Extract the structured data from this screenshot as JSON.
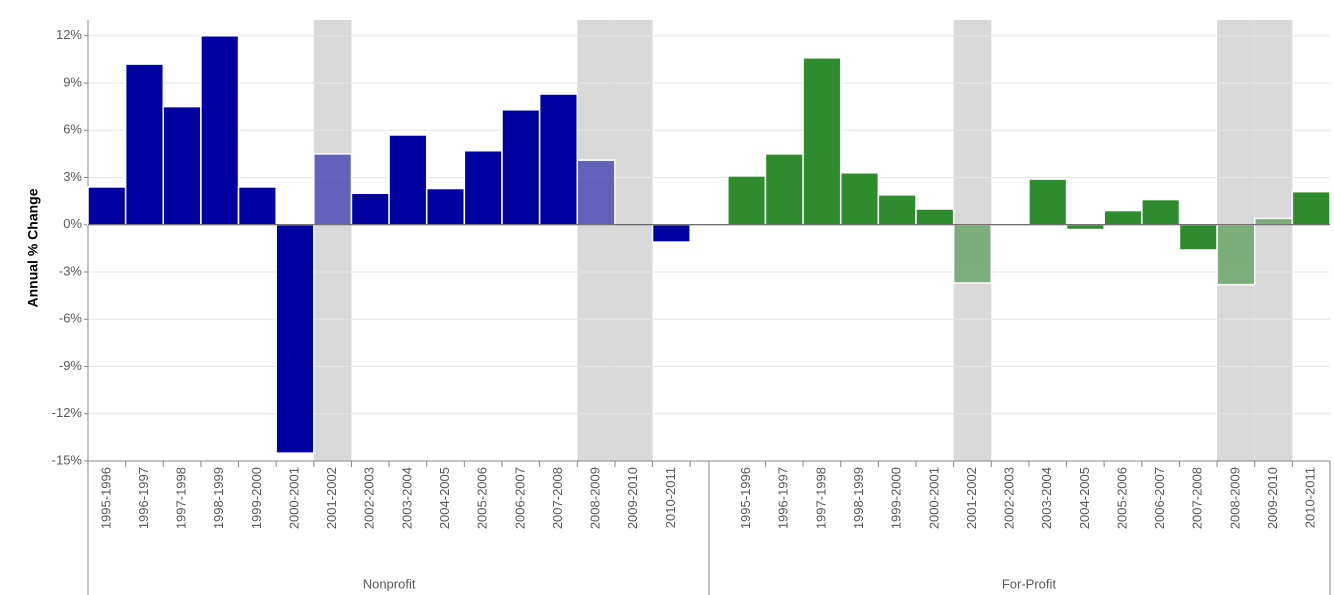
{
  "chart_data": {
    "type": "bar",
    "y_label": "Annual % Change",
    "ylim": [
      -15,
      13
    ],
    "yticks": [
      {
        "value": 12,
        "label": "12%"
      },
      {
        "value": 9,
        "label": "9%"
      },
      {
        "value": 6,
        "label": "6%"
      },
      {
        "value": 3,
        "label": "3%"
      },
      {
        "value": 0,
        "label": "0%"
      },
      {
        "value": -3,
        "label": "-3%"
      },
      {
        "value": -6,
        "label": "-6%"
      },
      {
        "value": -9,
        "label": "-9%"
      },
      {
        "value": -12,
        "label": "-12%"
      },
      {
        "value": -15,
        "label": "-15%"
      }
    ],
    "grid": true,
    "highlight": [
      "2001-2002",
      "2008-2009",
      "2009-2010"
    ],
    "groups": [
      {
        "name": "Nonprofit",
        "color": "#0000a0",
        "categories": [
          "1995-1996",
          "1996-1997",
          "1997-1998",
          "1998-1999",
          "1999-2000",
          "2000-2001",
          "2001-2002",
          "2002-2003",
          "2003-2004",
          "2004-2005",
          "2005-2006",
          "2006-2007",
          "2007-2008",
          "2008-2009",
          "2009-2010",
          "2010-2011"
        ],
        "values": [
          2.4,
          10.2,
          7.5,
          12.0,
          2.4,
          -14.5,
          4.5,
          2.0,
          5.7,
          2.3,
          4.7,
          7.3,
          8.3,
          4.1,
          0,
          -1.1
        ]
      },
      {
        "name": "For-Profit",
        "color": "#2e8b2e",
        "categories": [
          "1995-1996",
          "1996-1997",
          "1997-1998",
          "1998-1999",
          "1999-2000",
          "2000-2001",
          "2001-2002",
          "2002-2003",
          "2003-2004",
          "2004-2005",
          "2005-2006",
          "2006-2007",
          "2007-2008",
          "2008-2009",
          "2009-2010",
          "2010-2011"
        ],
        "values": [
          3.1,
          4.5,
          10.6,
          3.3,
          1.9,
          1.0,
          -3.7,
          -0.1,
          2.9,
          -0.3,
          0.9,
          1.6,
          -1.6,
          -3.8,
          0.4,
          2.1
        ]
      }
    ]
  }
}
